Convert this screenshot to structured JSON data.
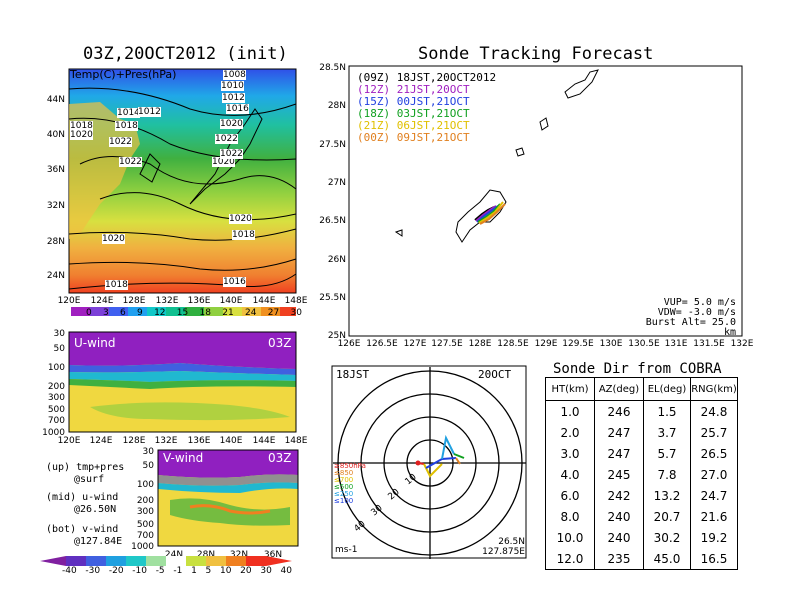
{
  "map_panel": {
    "title": "03Z,20OCT2012 (init)",
    "inner_label": "Temp(C)+Pres(hPa)",
    "lon_ticks": [
      "120E",
      "124E",
      "128E",
      "132E",
      "136E",
      "140E",
      "144E",
      "148E"
    ],
    "lat_ticks": [
      "44N",
      "40N",
      "36N",
      "32N",
      "28N",
      "24N"
    ],
    "pressure_labels": [
      "1008",
      "1010",
      "1012",
      "1016",
      "1014",
      "1012",
      "1018",
      "1020",
      "1022",
      "1022",
      "1020",
      "1018",
      "1020",
      "1018",
      "1016",
      "1018",
      "1022",
      "1020",
      "1014"
    ],
    "colorbar_ticks": [
      "0",
      "3",
      "6",
      "9",
      "12",
      "15",
      "18",
      "21",
      "24",
      "27",
      "30"
    ],
    "colorbar_colors": [
      "#a020c0",
      "#7c40d8",
      "#4060f0",
      "#20a0f0",
      "#10c8c8",
      "#10c090",
      "#30b040",
      "#90d040",
      "#d8e040",
      "#f0c040",
      "#f09020",
      "#f04020"
    ]
  },
  "u_panel": {
    "label": "U-wind",
    "time": "03Z",
    "y_ticks": [
      "30",
      "50",
      "100",
      "200",
      "300",
      "500",
      "700",
      "1000"
    ],
    "x_ticks": [
      "120E",
      "124E",
      "128E",
      "132E",
      "136E",
      "140E",
      "144E",
      "148E"
    ]
  },
  "v_panel": {
    "label": "V-wind",
    "time": "03Z",
    "y_ticks": [
      "30",
      "50",
      "100",
      "200",
      "300",
      "500",
      "700",
      "1000"
    ],
    "x_ticks": [
      "24N",
      "28N",
      "32N",
      "36N"
    ]
  },
  "side_notes": {
    "up_line1": "(up) tmp+pres",
    "up_line2": "@surf",
    "mid_line1": "(mid) u-wind",
    "mid_line2": "@26.50N",
    "bot_line1": "(bot) v-wind",
    "bot_line2": "@127.84E"
  },
  "wind_colorbar": {
    "ticks": [
      "-40",
      "-30",
      "-20",
      "-10",
      "-5",
      "-1",
      "1",
      "5",
      "10",
      "20",
      "30",
      "40"
    ],
    "colors": [
      "#8020a0",
      "#6030c0",
      "#4060e0",
      "#20a0e0",
      "#20c8c8",
      "#a0e0a0",
      "#ffffff",
      "#c8e040",
      "#f0c040",
      "#f08020",
      "#f03020"
    ]
  },
  "tracking": {
    "title": "Sonde Tracking Forecast",
    "legend": [
      {
        "text": "(09Z)  18JST,20OCT2012",
        "color": "#000000"
      },
      {
        "text": "(12Z)  21JST,20OCT",
        "color": "#a020c0"
      },
      {
        "text": "(15Z)  00JST,21OCT",
        "color": "#2040e0"
      },
      {
        "text": "(18Z)  03JST,21OCT",
        "color": "#10a020"
      },
      {
        "text": "(21Z)  06JST,21OCT",
        "color": "#e0c000"
      },
      {
        "text": "(00Z)  09JST,21OCT",
        "color": "#e08020"
      }
    ],
    "lat_ticks": [
      "28.5N",
      "28N",
      "27.5N",
      "27N",
      "26.5N",
      "26N",
      "25.5N",
      "25N"
    ],
    "lon_ticks": [
      "126E",
      "126.5E",
      "127E",
      "127.5E",
      "128E",
      "128.5E",
      "129E",
      "129.5E",
      "130E",
      "130.5E",
      "131E",
      "131.5E",
      "132E"
    ],
    "params": [
      "VUP=  5.0  m/s",
      "VDW= -3.0  m/s",
      "Burst Alt=  25.0  km"
    ]
  },
  "polar": {
    "time_label": "18JST",
    "date_label": "20OCT",
    "levels": [
      {
        "text": "≥850hPa",
        "color": "#e02020"
      },
      {
        "text": "≤850",
        "color": "#e08020"
      },
      {
        "text": "≤700",
        "color": "#e0c000"
      },
      {
        "text": "≤500",
        "color": "#10a020"
      },
      {
        "text": "≤250",
        "color": "#20a0e0"
      },
      {
        "text": "≤100",
        "color": "#2040e0"
      }
    ],
    "ring_labels": [
      "10",
      "20",
      "30",
      "40"
    ],
    "unit": "ms-1",
    "lat": "26.5N",
    "lon": "127.875E"
  },
  "cobra": {
    "title": "Sonde Dir from COBRA",
    "headers": [
      "HT(km)",
      "AZ(deg)",
      "EL(deg)",
      "RNG(km)"
    ],
    "rows": [
      [
        "1.0",
        "246",
        "1.5",
        "24.8"
      ],
      [
        "2.0",
        "247",
        "3.7",
        "25.7"
      ],
      [
        "3.0",
        "247",
        "5.7",
        "26.5"
      ],
      [
        "4.0",
        "245",
        "7.8",
        "27.0"
      ],
      [
        "6.0",
        "242",
        "13.2",
        "24.7"
      ],
      [
        "8.0",
        "240",
        "20.7",
        "21.6"
      ],
      [
        "10.0",
        "240",
        "30.2",
        "19.2"
      ],
      [
        "12.0",
        "235",
        "45.0",
        "16.5"
      ]
    ]
  }
}
